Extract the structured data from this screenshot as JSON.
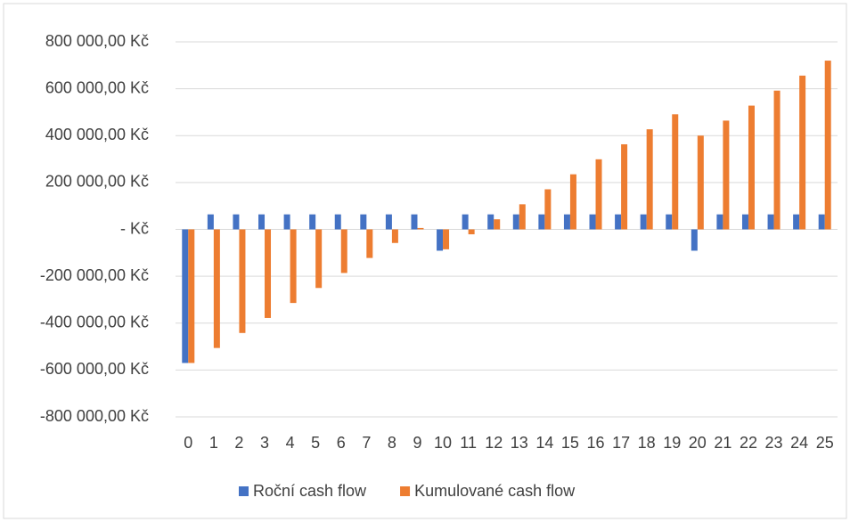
{
  "chart_data": {
    "type": "bar",
    "categories": [
      "0",
      "1",
      "2",
      "3",
      "4",
      "5",
      "6",
      "7",
      "8",
      "9",
      "10",
      "11",
      "12",
      "13",
      "14",
      "15",
      "16",
      "17",
      "18",
      "19",
      "20",
      "21",
      "22",
      "23",
      "24",
      "25"
    ],
    "series": [
      {
        "name": "Roční cash flow",
        "color": "#4472c4",
        "values": [
          -570000,
          64000,
          64000,
          64000,
          64000,
          64000,
          64000,
          64000,
          64000,
          64000,
          -91000,
          64000,
          64000,
          64000,
          64000,
          64000,
          64000,
          64000,
          64000,
          64000,
          -91000,
          64000,
          64000,
          64000,
          64000,
          64000
        ]
      },
      {
        "name": "Kumulované cash flow",
        "color": "#ed7d31",
        "values": [
          -570000,
          -506000,
          -442000,
          -378000,
          -314000,
          -250000,
          -186000,
          -122000,
          -58000,
          6000,
          -85000,
          -21000,
          43000,
          107000,
          171000,
          235000,
          299000,
          363000,
          427000,
          491000,
          400000,
          464000,
          528000,
          592000,
          656000,
          720000
        ]
      }
    ],
    "ylim": [
      -800000,
      800000
    ],
    "yticks": [
      {
        "value": -800000,
        "label": "-800 000,00 Kč"
      },
      {
        "value": -600000,
        "label": "-600 000,00 Kč"
      },
      {
        "value": -400000,
        "label": "-400 000,00 Kč"
      },
      {
        "value": -200000,
        "label": "-200 000,00 Kč"
      },
      {
        "value": 0,
        "label": "-   Kč"
      },
      {
        "value": 200000,
        "label": "200 000,00 Kč"
      },
      {
        "value": 400000,
        "label": "400 000,00 Kč"
      },
      {
        "value": 600000,
        "label": "600 000,00 Kč"
      },
      {
        "value": 800000,
        "label": "800 000,00 Kč"
      }
    ],
    "grid": true,
    "legend": "bottom"
  }
}
